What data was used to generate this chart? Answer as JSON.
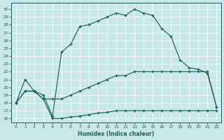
{
  "background_color": "#c8e8e8",
  "grid_color": "#b0d8d8",
  "line_color": "#1a6060",
  "xlabel": "Humidex (Indice chaleur)",
  "xlim": [
    -0.5,
    22.5
  ],
  "ylim": [
    15.5,
    30.8
  ],
  "xticks": [
    0,
    1,
    2,
    3,
    4,
    5,
    6,
    7,
    8,
    9,
    10,
    11,
    12,
    13,
    14,
    15,
    16,
    17,
    18,
    19,
    20,
    21,
    22
  ],
  "yticks": [
    16,
    17,
    18,
    19,
    20,
    21,
    22,
    23,
    24,
    25,
    26,
    27,
    28,
    29,
    30
  ],
  "line_top_x": [
    0,
    1,
    2,
    3,
    4,
    5,
    6,
    7,
    8,
    9,
    10,
    11,
    12,
    13,
    14,
    15,
    16,
    17,
    18,
    19,
    20,
    21,
    22
  ],
  "line_top_y": [
    18.0,
    21.0,
    19.5,
    19.0,
    16.3,
    24.5,
    25.5,
    27.8,
    28.0,
    28.5,
    29.0,
    29.5,
    29.2,
    30.0,
    29.5,
    29.2,
    27.5,
    26.5,
    23.5,
    22.5,
    22.3,
    21.8,
    17.5
  ],
  "line_mid_x": [
    0,
    1,
    2,
    3,
    4,
    5,
    6,
    7,
    8,
    9,
    10,
    11,
    12,
    13,
    14,
    15,
    16,
    17,
    18,
    19,
    20,
    21,
    22
  ],
  "line_mid_y": [
    18.0,
    19.5,
    19.5,
    18.5,
    18.5,
    18.5,
    19.0,
    19.5,
    20.0,
    20.5,
    21.0,
    21.5,
    21.5,
    22.0,
    22.0,
    22.0,
    22.0,
    22.0,
    22.0,
    22.0,
    22.0,
    22.0,
    17.5
  ],
  "line_bot_x": [
    0,
    1,
    2,
    3,
    4,
    5,
    6,
    7,
    8,
    9,
    10,
    11,
    12,
    13,
    14,
    15,
    16,
    17,
    18,
    19,
    20,
    21,
    22
  ],
  "line_bot_y": [
    18.0,
    19.5,
    19.5,
    18.5,
    16.0,
    16.0,
    16.2,
    16.3,
    16.5,
    16.7,
    16.8,
    17.0,
    17.0,
    17.0,
    17.0,
    17.0,
    17.0,
    17.0,
    17.0,
    17.0,
    17.0,
    17.0,
    17.0
  ]
}
